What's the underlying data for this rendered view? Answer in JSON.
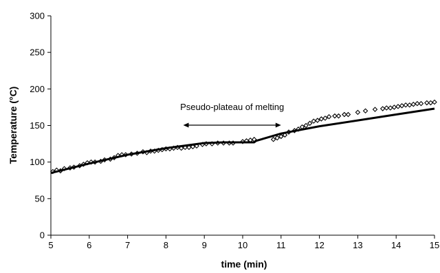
{
  "chart_data": {
    "type": "scatter",
    "xlabel": "time (min)",
    "ylabel": "Temperature (°C)",
    "xlim": [
      5,
      15
    ],
    "ylim": [
      0,
      300
    ],
    "x_ticks": [
      5,
      6,
      7,
      8,
      9,
      10,
      11,
      12,
      13,
      14,
      15
    ],
    "y_ticks": [
      0,
      50,
      100,
      150,
      200,
      250,
      300
    ],
    "grid": false,
    "legend": "none",
    "annotation": {
      "text": "Pseudo-plateau of melting",
      "arrow_from_x": 8.45,
      "arrow_to_x": 11.0,
      "arrow_y": 150
    },
    "series": [
      {
        "kind": "markers",
        "marker": "diamond-open",
        "points": [
          [
            5.05,
            87
          ],
          [
            5.15,
            89
          ],
          [
            5.25,
            88
          ],
          [
            5.35,
            91
          ],
          [
            5.5,
            92
          ],
          [
            5.6,
            93
          ],
          [
            5.75,
            95
          ],
          [
            5.85,
            97
          ],
          [
            5.95,
            99
          ],
          [
            6.05,
            100
          ],
          [
            6.15,
            100
          ],
          [
            6.3,
            101
          ],
          [
            6.4,
            103
          ],
          [
            6.55,
            104
          ],
          [
            6.65,
            106
          ],
          [
            6.75,
            109
          ],
          [
            6.85,
            110
          ],
          [
            6.95,
            110
          ],
          [
            7.1,
            111
          ],
          [
            7.25,
            112
          ],
          [
            7.4,
            114
          ],
          [
            7.5,
            113
          ],
          [
            7.6,
            115
          ],
          [
            7.7,
            115
          ],
          [
            7.8,
            116
          ],
          [
            7.9,
            117
          ],
          [
            8.0,
            118
          ],
          [
            8.1,
            118
          ],
          [
            8.2,
            119
          ],
          [
            8.3,
            120
          ],
          [
            8.4,
            119
          ],
          [
            8.5,
            120
          ],
          [
            8.6,
            120
          ],
          [
            8.7,
            121
          ],
          [
            8.8,
            122
          ],
          [
            8.95,
            124
          ],
          [
            9.05,
            125
          ],
          [
            9.2,
            125
          ],
          [
            9.35,
            126
          ],
          [
            9.5,
            126
          ],
          [
            9.65,
            126
          ],
          [
            9.75,
            126
          ],
          [
            10.0,
            128
          ],
          [
            10.1,
            129
          ],
          [
            10.2,
            130
          ],
          [
            10.3,
            131
          ],
          [
            10.8,
            131
          ],
          [
            10.9,
            133
          ],
          [
            11.0,
            135
          ],
          [
            11.1,
            137
          ],
          [
            11.2,
            141
          ],
          [
            11.35,
            143
          ],
          [
            11.45,
            145
          ],
          [
            11.55,
            148
          ],
          [
            11.65,
            150
          ],
          [
            11.75,
            153
          ],
          [
            11.85,
            156
          ],
          [
            11.95,
            157
          ],
          [
            12.05,
            159
          ],
          [
            12.15,
            160
          ],
          [
            12.25,
            162
          ],
          [
            12.4,
            163
          ],
          [
            12.5,
            163
          ],
          [
            12.65,
            165
          ],
          [
            12.75,
            165
          ],
          [
            13.0,
            168
          ],
          [
            13.2,
            170
          ],
          [
            13.45,
            172
          ],
          [
            13.65,
            173
          ],
          [
            13.75,
            174
          ],
          [
            13.85,
            174
          ],
          [
            13.95,
            175
          ],
          [
            14.05,
            176
          ],
          [
            14.15,
            177
          ],
          [
            14.25,
            178
          ],
          [
            14.35,
            178
          ],
          [
            14.45,
            179
          ],
          [
            14.55,
            180
          ],
          [
            14.65,
            180
          ],
          [
            14.8,
            181
          ],
          [
            14.9,
            181
          ],
          [
            15.0,
            182
          ]
        ]
      },
      {
        "kind": "line",
        "points": [
          [
            5.0,
            85
          ],
          [
            6.0,
            98
          ],
          [
            7.0,
            110
          ],
          [
            8.0,
            119
          ],
          [
            9.0,
            126
          ],
          [
            9.5,
            127
          ],
          [
            10.3,
            127
          ],
          [
            10.35,
            129
          ],
          [
            11.0,
            139
          ],
          [
            12.0,
            149
          ],
          [
            13.0,
            157
          ],
          [
            14.0,
            165
          ],
          [
            15.0,
            173
          ]
        ]
      }
    ]
  }
}
